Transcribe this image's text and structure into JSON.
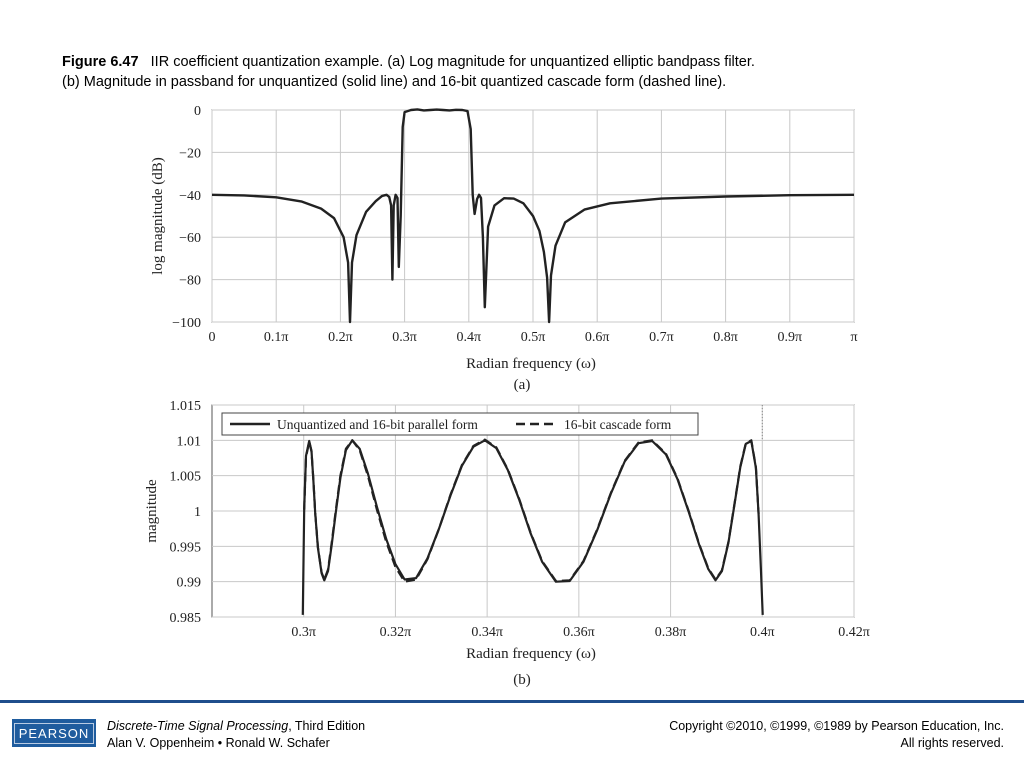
{
  "caption": {
    "figure_label": "Figure 6.47",
    "line1": "IIR coefficient quantization example. (a) Log magnitude for unquantized elliptic bandpass filter.",
    "line2": "(b) Magnitude in passband for unquantized (solid line) and 16-bit quantized cascade form (dashed line)."
  },
  "chart_data": [
    {
      "type": "line",
      "panel_label": "(a)",
      "xlabel": "Radian frequency (ω)",
      "ylabel": "log magnitude (dB)",
      "xlim": [
        0,
        1
      ],
      "ylim": [
        -100,
        0
      ],
      "x_unit": "π",
      "x_ticks": [
        0,
        0.1,
        0.2,
        0.3,
        0.4,
        0.5,
        0.6,
        0.7,
        0.8,
        0.9,
        1.0
      ],
      "x_tick_labels": [
        "0",
        "0.1π",
        "0.2π",
        "0.3π",
        "0.4π",
        "0.5π",
        "0.6π",
        "0.7π",
        "0.8π",
        "0.9π",
        "π"
      ],
      "y_ticks": [
        0,
        -20,
        -40,
        -60,
        -80,
        -100
      ],
      "y_tick_labels": [
        "0",
        "−20",
        "−40",
        "−60",
        "−80",
        "−100"
      ],
      "grid": true,
      "series": [
        {
          "x": [
            0,
            0.05,
            0.1,
            0.14,
            0.17,
            0.19,
            0.205,
            0.212,
            0.215,
            0.218,
            0.225,
            0.24,
            0.255,
            0.265,
            0.272,
            0.276,
            0.279,
            0.281,
            0.283,
            0.286,
            0.289,
            0.291,
            0.294,
            0.297,
            0.3,
            0.31,
            0.32,
            0.33,
            0.34,
            0.35,
            0.36,
            0.37,
            0.38,
            0.39,
            0.398,
            0.403,
            0.406,
            0.409,
            0.413,
            0.416,
            0.419,
            0.422,
            0.425,
            0.43,
            0.44,
            0.455,
            0.47,
            0.485,
            0.5,
            0.51,
            0.517,
            0.522,
            0.525,
            0.528,
            0.535,
            0.55,
            0.58,
            0.62,
            0.7,
            0.8,
            0.9,
            1.0
          ],
          "y": [
            -40,
            -40.3,
            -41.2,
            -43.2,
            -46.5,
            -51,
            -60,
            -72,
            -100,
            -72,
            -59,
            -48,
            -43,
            -40.5,
            -40,
            -41,
            -45,
            -80,
            -45,
            -40,
            -41.5,
            -74,
            -50,
            -8,
            -1,
            0,
            0.3,
            -0.2,
            0,
            0.2,
            0,
            -0.2,
            0.1,
            0,
            -0.5,
            -9,
            -40,
            -49,
            -42,
            -40,
            -41.5,
            -60,
            -93,
            -55,
            -45,
            -41.6,
            -41.8,
            -44,
            -50,
            -57,
            -67,
            -79,
            -100,
            -78,
            -64,
            -53,
            -47,
            -44,
            -41.8,
            -40.8,
            -40.2,
            -40
          ]
        }
      ]
    },
    {
      "type": "line",
      "panel_label": "(b)",
      "xlabel": "Radian frequency (ω)",
      "ylabel": "magnitude",
      "xlim": [
        0.28,
        0.42
      ],
      "ylim": [
        0.985,
        1.015
      ],
      "x_unit": "π",
      "x_ticks": [
        0.3,
        0.32,
        0.34,
        0.36,
        0.38,
        0.4,
        0.42
      ],
      "x_tick_labels": [
        "0.3π",
        "0.32π",
        "0.34π",
        "0.36π",
        "0.38π",
        "0.4π",
        "0.42π"
      ],
      "y_ticks": [
        1.015,
        1.01,
        1.005,
        1,
        0.995,
        0.99,
        0.985
      ],
      "y_tick_labels": [
        "1.015",
        "1.01",
        "1.005",
        "1",
        "0.995",
        "0.99",
        "0.985"
      ],
      "grid": true,
      "legend_position": "top",
      "series": [
        {
          "name": "Unquantized and 16-bit parallel form",
          "style": "solid",
          "x": [
            0.2998,
            0.3001,
            0.3005,
            0.3012,
            0.3017,
            0.3021,
            0.3025,
            0.3031,
            0.3039,
            0.3045,
            0.3053,
            0.3061,
            0.307,
            0.308,
            0.3092,
            0.3106,
            0.3122,
            0.314,
            0.316,
            0.318,
            0.32,
            0.322,
            0.3245,
            0.327,
            0.3295,
            0.332,
            0.3345,
            0.337,
            0.3395,
            0.342,
            0.3445,
            0.347,
            0.3495,
            0.352,
            0.355,
            0.358,
            0.361,
            0.364,
            0.367,
            0.37,
            0.373,
            0.376,
            0.379,
            0.3815,
            0.384,
            0.3862,
            0.3882,
            0.3898,
            0.3912,
            0.3926,
            0.394,
            0.3952,
            0.3964,
            0.3976,
            0.3986,
            0.3992,
            0.3997,
            0.4001
          ],
          "y": [
            0.9853,
            1.0003,
            1.0078,
            1.0099,
            1.0085,
            1.0045,
            0.9997,
            0.9948,
            0.9912,
            0.9902,
            0.9915,
            0.9952,
            0.9998,
            1.0047,
            1.0086,
            1.01,
            1.0088,
            1.0053,
            1.0005,
            0.996,
            0.9925,
            0.9903,
            0.9905,
            0.9933,
            0.9975,
            1.0022,
            1.0064,
            1.0091,
            1.01,
            1.0089,
            1.0058,
            1.0016,
            0.9968,
            0.9928,
            0.99,
            0.9901,
            0.9928,
            0.9973,
            1.0025,
            1.007,
            1.0096,
            1.0099,
            1.008,
            1.0045,
            0.9998,
            0.9953,
            0.9918,
            0.9902,
            0.9915,
            0.9955,
            1.0012,
            1.0062,
            1.0095,
            1.0099,
            1.0061,
            0.9995,
            0.9918,
            0.9853
          ]
        },
        {
          "name": "16-bit cascade form",
          "style": "dashed",
          "x": [
            0.3001,
            0.3005,
            0.3012,
            0.3017,
            0.3021,
            0.3025,
            0.3031,
            0.3039,
            0.3045,
            0.3053,
            0.3061,
            0.307,
            0.308,
            0.3092,
            0.3106,
            0.3122,
            0.314,
            0.316,
            0.318,
            0.32,
            0.322,
            0.3245,
            0.327,
            0.3295,
            0.332,
            0.3345,
            0.337,
            0.3395,
            0.342,
            0.3445,
            0.347,
            0.3495,
            0.352,
            0.355,
            0.358,
            0.361,
            0.364,
            0.367,
            0.37,
            0.373,
            0.376,
            0.379,
            0.3815,
            0.384,
            0.3862,
            0.3882,
            0.3898,
            0.3912,
            0.3926,
            0.394,
            0.3952,
            0.3964,
            0.3976,
            0.3986,
            0.3992
          ],
          "y": [
            1.0002,
            1.0076,
            1.0098,
            1.0084,
            1.0046,
            0.9998,
            0.9949,
            0.9913,
            0.9903,
            0.9917,
            0.9955,
            1.0001,
            1.005,
            1.0088,
            1.01,
            1.0086,
            1.005,
            1.0001,
            0.9956,
            0.9921,
            0.99,
            0.9903,
            0.9932,
            0.9975,
            1.0023,
            1.0065,
            1.0092,
            1.0101,
            1.009,
            1.0059,
            1.0017,
            0.9969,
            0.9929,
            0.9901,
            0.9902,
            0.9929,
            0.9974,
            1.0026,
            1.0071,
            1.0097,
            1.01,
            1.0081,
            1.0046,
            0.9999,
            0.9954,
            0.9919,
            0.9903,
            0.9916,
            0.9956,
            1.0013,
            1.0063,
            1.0096,
            1.01,
            1.0062,
            0.9996
          ]
        }
      ]
    }
  ],
  "footer": {
    "logo_text": "PEARSON",
    "book_title": "Discrete-Time Signal Processing",
    "edition": ", Third Edition",
    "authors": "Alan V. Oppenheim • Ronald W. Schafer",
    "copyright": "Copyright ©2010, ©1999, ©1989 by Pearson Education, Inc.",
    "rights": "All rights reserved."
  },
  "colors": {
    "curve": "#222222",
    "grid": "#c8c8c8",
    "axes": "#555555",
    "footer_rule": "#1f4e8c",
    "logo": "#1f5c9e"
  }
}
